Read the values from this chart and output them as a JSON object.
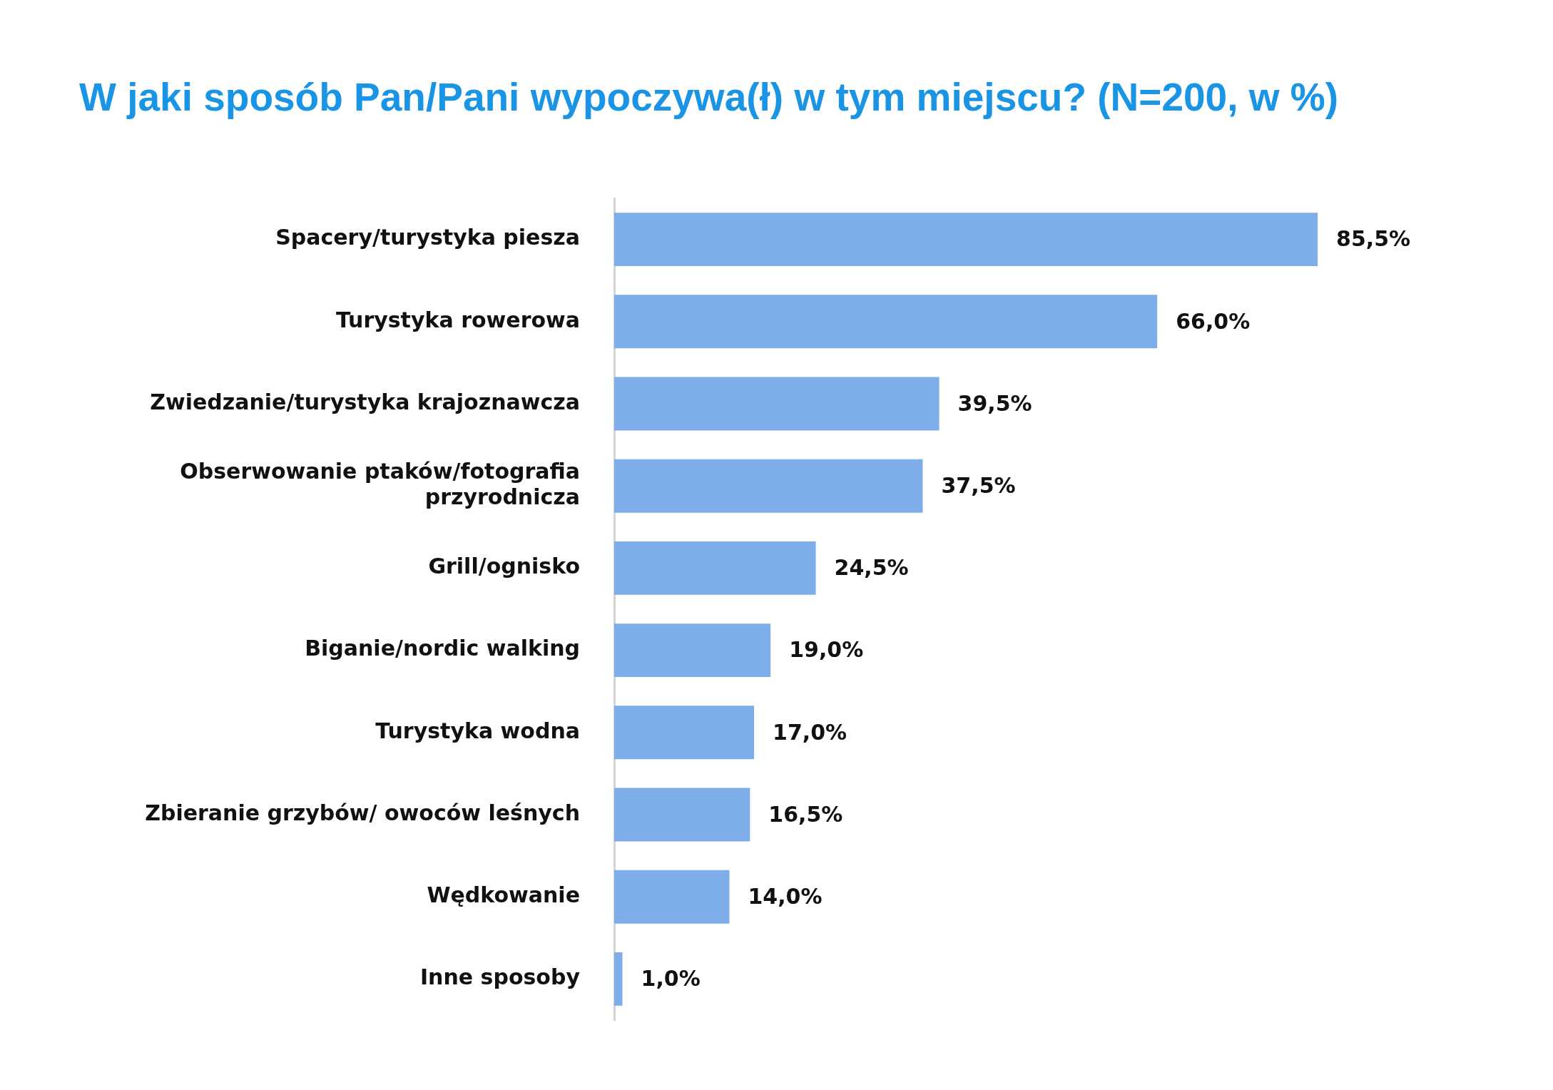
{
  "chart_data": {
    "type": "bar",
    "orientation": "horizontal",
    "title": "W jaki sposób Pan/Pani wypoczywa(ł) w tym miejscu? (N=200, w %)",
    "categories": [
      "Spacery/turystyka piesza",
      "Turystyka rowerowa",
      "Zwiedzanie/turystyka krajoznawcza",
      "Obserwowanie ptaków/fotografia przyrodnicza",
      "Grill/ognisko",
      "Biganie/nordic walking",
      "Turystyka wodna",
      "Zbieranie grzybów/ owoców leśnych",
      "Wędkowanie",
      "Inne sposoby"
    ],
    "values": [
      85.5,
      66.0,
      39.5,
      37.5,
      24.5,
      19.0,
      17.0,
      16.5,
      14.0,
      1.0
    ],
    "value_labels": [
      "85,5%",
      "66,0%",
      "39,5%",
      "37,5%",
      "24,5%",
      "19,0%",
      "17,0%",
      "16,5%",
      "14,0%",
      "1,0%"
    ],
    "color": "#7eaeea",
    "tick_labels": "y"
  }
}
